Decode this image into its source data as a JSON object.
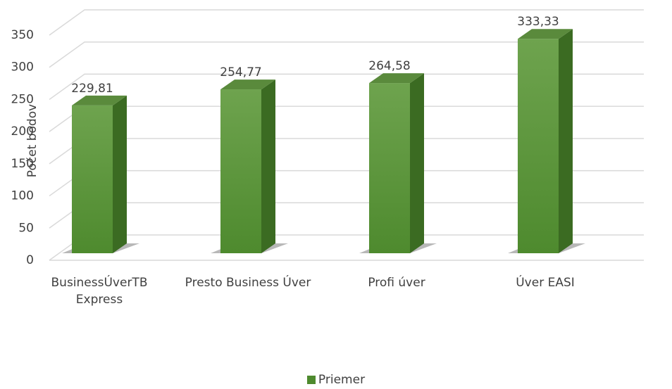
{
  "chart_data": {
    "type": "bar3d",
    "ylabel": "Počet bodov",
    "categories": [
      "BusinessÚverTB Express",
      "Presto Business Úver",
      "Profi úver",
      "Úver EASI"
    ],
    "series": [
      {
        "name": "Priemer",
        "color": "#4e8a2e",
        "values": [
          229.81,
          254.77,
          264.58,
          333.33
        ],
        "value_labels": [
          "229,81",
          "254,77",
          "264,58",
          "333,33"
        ]
      }
    ],
    "ylim": [
      0,
      350
    ],
    "yticks": [
      0,
      50,
      100,
      150,
      200,
      250,
      300,
      350
    ],
    "grid": true,
    "legend": "bottom"
  }
}
